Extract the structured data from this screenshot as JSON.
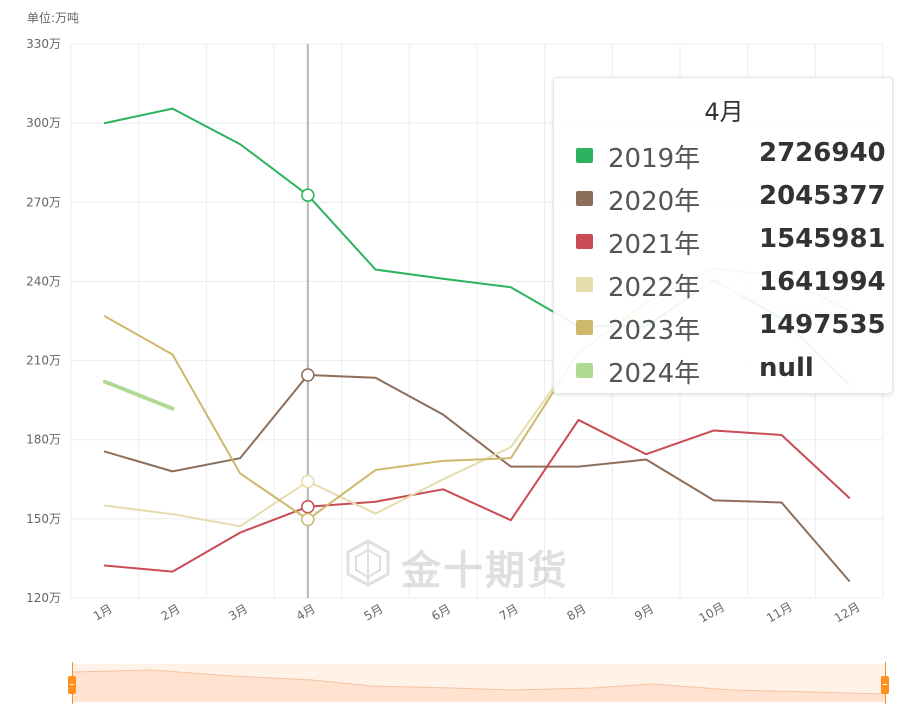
{
  "chart_data": {
    "type": "line",
    "unit_label": "单位:万吨",
    "y_ticks": [
      "330万",
      "300万",
      "270万",
      "240万",
      "210万",
      "180万",
      "150万",
      "120万"
    ],
    "ylim": [
      1200000,
      3300000
    ],
    "categories": [
      "1月",
      "2月",
      "3月",
      "4月",
      "5月",
      "6月",
      "7月",
      "8月",
      "9月",
      "10月",
      "11月",
      "12月"
    ],
    "series": [
      {
        "name": "2019年",
        "color": "#2db25f",
        "values": [
          3000000,
          3055000,
          2920000,
          2726940,
          2445000,
          2410000,
          2378000,
          2230000,
          2230000,
          2405000,
          2260000,
          2010000
        ]
      },
      {
        "name": "2020年",
        "color": "#8d6e5a",
        "values": [
          1755000,
          1680000,
          1730000,
          2045377,
          2035000,
          1895000,
          1698000,
          1698000,
          1725000,
          1570000,
          1562000,
          1265000
        ]
      },
      {
        "name": "2021年",
        "color": "#c94b55",
        "values": [
          1323000,
          1300000,
          1448000,
          1545981,
          1565000,
          1612000,
          1495000,
          1875000,
          1745000,
          1835000,
          1818000,
          1580000
        ]
      },
      {
        "name": "2022年",
        "color": "#e6dcae",
        "values": [
          1550000,
          1518000,
          1472000,
          1641994,
          1520000,
          1650000,
          1772000,
          2130000,
          2305000,
          2395000,
          2290000,
          2330000
        ]
      },
      {
        "name": "2023年",
        "color": "#cdb86b",
        "values": [
          2268000,
          2123000,
          1672000,
          1497535,
          1685000,
          1720000,
          1730000,
          2130000,
          2320000,
          2450000,
          2420000,
          2290000
        ]
      },
      {
        "name": "2024年",
        "color": "#b0d994",
        "values": [
          2020000,
          1918000,
          null,
          null,
          null,
          null,
          null,
          null,
          null,
          null,
          null,
          null
        ]
      }
    ],
    "grid": true,
    "legend": "none"
  },
  "tooltip": {
    "title": "4月",
    "rows": [
      {
        "name": "2019年",
        "value": "2726940",
        "color": "#2db25f"
      },
      {
        "name": "2020年",
        "value": "2045377",
        "color": "#8d6e5a"
      },
      {
        "name": "2021年",
        "value": "1545981",
        "color": "#c94b55"
      },
      {
        "name": "2022年",
        "value": "1641994",
        "color": "#e6dcae"
      },
      {
        "name": "2023年",
        "value": "1497535",
        "color": "#cdb86b"
      },
      {
        "name": "2024年",
        "value": "null",
        "color": "#b0d994"
      }
    ]
  },
  "watermark": {
    "text": "金十期货"
  },
  "data_zoom": {
    "start_percent": 0,
    "end_percent": 100
  }
}
